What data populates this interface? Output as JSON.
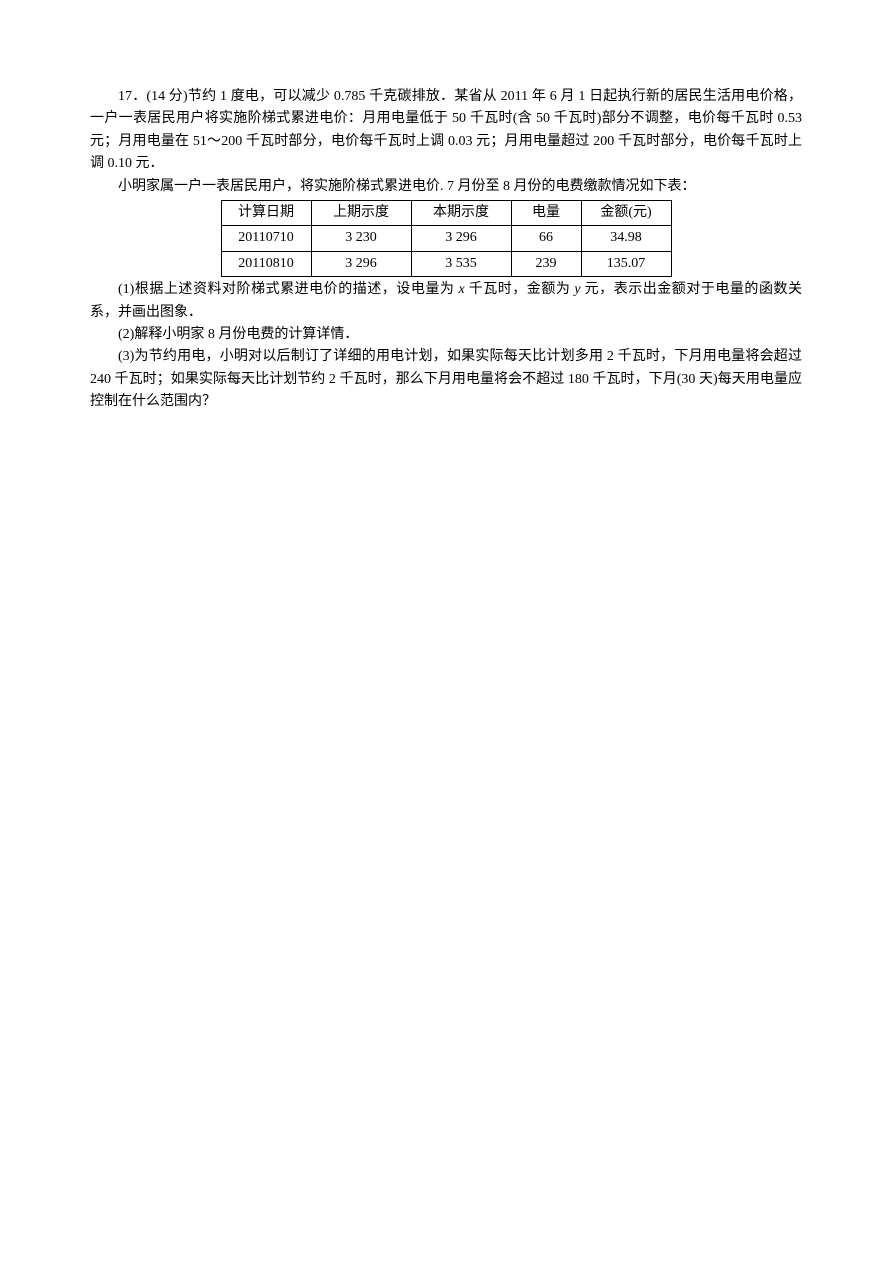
{
  "p1": "17．(14 分)节约 1 度电，可以减少 0.785 千克碳排放．某省从 2011 年 6 月 1 日起执行新的居民生活用电价格，一户一表居民用户将实施阶梯式累进电价：月用电量低于 50 千瓦时(含 50 千瓦时)部分不调整，电价每千瓦时 0.53 元；月用电量在 51～200 千瓦时部分，电价每千瓦时上调 0.03 元；月用电量超过 200 千瓦时部分，电价每千瓦时上调 0.10 元．",
  "p2": "小明家属一户一表居民用户，将实施阶梯式累进电价. 7 月份至 8 月份的电费缴款情况如下表：",
  "table": {
    "headers": [
      "计算日期",
      "上期示度",
      "本期示度",
      "电量",
      "金额(元)"
    ],
    "rows": [
      [
        "20110710",
        "3 230",
        "3 296",
        "66",
        "34.98"
      ],
      [
        "20110810",
        "3 296",
        "3 535",
        "239",
        "135.07"
      ]
    ]
  },
  "q1_a": "(1)根据上述资料对阶梯式累进电价的描述，设电量为 ",
  "q1_x": "x",
  "q1_b": " 千瓦时，金额为 ",
  "q1_y": "y",
  "q1_c": " 元，表示出金额对于电量的函数关系，并画出图象．",
  "q2": "(2)解释小明家 8 月份电费的计算详情．",
  "q3": "(3)为节约用电，小明对以后制订了详细的用电计划，如果实际每天比计划多用 2 千瓦时，下月用电量将会超过 240 千瓦时；如果实际每天比计划节约 2 千瓦时，那么下月用电量将会不超过 180 千瓦时，下月(30 天)每天用电量应控制在什么范围内？"
}
